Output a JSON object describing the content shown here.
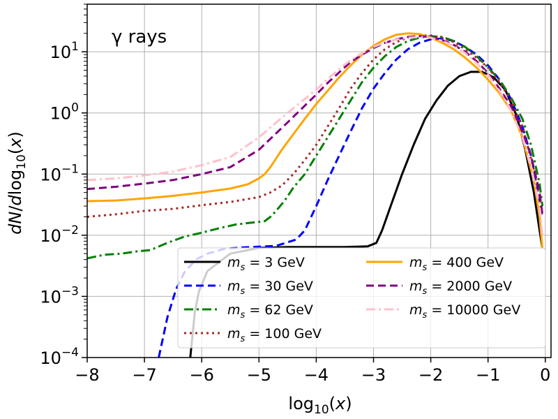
{
  "chart_data": {
    "type": "line",
    "annotation": "γ rays",
    "xlabel": "log10(x)",
    "ylabel": "dN/dlog10(x)",
    "xlim": [
      -8,
      0.1
    ],
    "ylim": [
      0.0001,
      60
    ],
    "yscale": "log",
    "grid": true,
    "legend_position": "lower-right",
    "legend_columns": 2,
    "x_ticks": [
      {
        "value": -8,
        "label": "−8"
      },
      {
        "value": -7,
        "label": "−7"
      },
      {
        "value": -6,
        "label": "−6"
      },
      {
        "value": -5,
        "label": "−5"
      },
      {
        "value": -4,
        "label": "−4"
      },
      {
        "value": -3,
        "label": "−3"
      },
      {
        "value": -2,
        "label": "−2"
      },
      {
        "value": -1,
        "label": "−1"
      },
      {
        "value": 0,
        "label": "0"
      }
    ],
    "y_ticks": [
      {
        "value": 0.0001,
        "base": "10",
        "exp": "−4"
      },
      {
        "value": 0.001,
        "base": "10",
        "exp": "−3"
      },
      {
        "value": 0.01,
        "base": "10",
        "exp": "−2"
      },
      {
        "value": 0.1,
        "base": "10",
        "exp": "−1"
      },
      {
        "value": 1,
        "base": "10",
        "exp": "0"
      },
      {
        "value": 10,
        "base": "10",
        "exp": "1"
      }
    ],
    "series": [
      {
        "name": "m_s = 3 GeV",
        "mass": "3",
        "color": "#000000",
        "style": "solid",
        "x": [
          -6.2,
          -6.12,
          -6.05,
          -5.9,
          -5.5,
          -5.0,
          -4.5,
          -4.0,
          -3.5,
          -3.1,
          -2.95,
          -2.85,
          -2.7,
          -2.5,
          -2.3,
          -2.1,
          -1.9,
          -1.7,
          -1.5,
          -1.3,
          -1.1,
          -0.9,
          -0.7,
          -0.5,
          -0.35,
          -0.2,
          -0.1,
          -0.05
        ],
        "y": [
          0.0001,
          0.00055,
          0.0012,
          0.0026,
          0.005,
          0.0062,
          0.0064,
          0.0064,
          0.0064,
          0.0066,
          0.0075,
          0.012,
          0.03,
          0.1,
          0.3,
          0.8,
          1.6,
          2.8,
          4.0,
          4.7,
          4.7,
          3.8,
          2.4,
          0.9,
          0.25,
          0.05,
          0.012,
          0.006
        ]
      },
      {
        "name": "m_s = 30 GeV",
        "mass": "30",
        "color": "#0000ff",
        "style": "dash",
        "x": [
          -6.75,
          -6.6,
          -6.45,
          -6.3,
          -6.1,
          -5.9,
          -5.6,
          -5.3,
          -5.0,
          -4.7,
          -4.35,
          -4.2,
          -4.0,
          -3.8,
          -3.6,
          -3.4,
          -3.2,
          -3.0,
          -2.8,
          -2.6,
          -2.4,
          -2.2,
          -2.0,
          -1.8,
          -1.6,
          -1.4,
          -1.2,
          -1.0,
          -0.8,
          -0.6,
          -0.4,
          -0.25,
          -0.15,
          -0.05
        ],
        "y": [
          0.0001,
          0.00045,
          0.0013,
          0.0025,
          0.004,
          0.005,
          0.006,
          0.0063,
          0.0065,
          0.0067,
          0.0085,
          0.012,
          0.03,
          0.08,
          0.2,
          0.5,
          1.2,
          2.5,
          4.5,
          7.5,
          11,
          14,
          16,
          16.5,
          15,
          12,
          9,
          6,
          3.5,
          1.7,
          0.6,
          0.2,
          0.07,
          0.02
        ]
      },
      {
        "name": "m_s = 62 GeV",
        "mass": "62",
        "color": "#008000",
        "style": "dashdot",
        "x": [
          -8,
          -7.7,
          -7.4,
          -7.1,
          -6.9,
          -6.6,
          -6.3,
          -6.0,
          -5.7,
          -5.4,
          -5.15,
          -5.0,
          -4.9,
          -4.8,
          -4.7,
          -4.55,
          -4.4,
          -4.2,
          -4.0,
          -3.8,
          -3.6,
          -3.4,
          -3.2,
          -3.0,
          -2.8,
          -2.6,
          -2.4,
          -2.2,
          -2.0,
          -1.8,
          -1.6,
          -1.4,
          -1.2,
          -1.0,
          -0.8,
          -0.6,
          -0.4,
          -0.25,
          -0.1,
          -0.05
        ],
        "y": [
          0.0042,
          0.0048,
          0.005,
          0.0055,
          0.0057,
          0.0075,
          0.0095,
          0.011,
          0.013,
          0.015,
          0.016,
          0.0165,
          0.017,
          0.02,
          0.025,
          0.037,
          0.06,
          0.1,
          0.2,
          0.4,
          0.8,
          1.6,
          3.2,
          5.5,
          8.5,
          12,
          15,
          17,
          18,
          17.5,
          15,
          12,
          8.5,
          5.5,
          3.5,
          1.8,
          0.8,
          0.3,
          0.07,
          0.03
        ]
      },
      {
        "name": "m_s = 100 GeV",
        "mass": "100",
        "color": "#a52a2a",
        "style": "dot",
        "x": [
          -8,
          -7.5,
          -7.0,
          -6.5,
          -6.0,
          -5.5,
          -5.0,
          -4.8,
          -4.6,
          -4.4,
          -4.2,
          -4.0,
          -3.8,
          -3.6,
          -3.4,
          -3.2,
          -3.0,
          -2.8,
          -2.6,
          -2.4,
          -2.2,
          -2.0,
          -1.8,
          -1.6,
          -1.4,
          -1.2,
          -1.0,
          -0.8,
          -0.6,
          -0.4,
          -0.2,
          -0.05
        ],
        "y": [
          0.02,
          0.022,
          0.025,
          0.027,
          0.031,
          0.035,
          0.042,
          0.05,
          0.065,
          0.1,
          0.17,
          0.3,
          0.6,
          1.2,
          2.5,
          4.5,
          7.5,
          11,
          14.5,
          17,
          18.5,
          18.5,
          17,
          14.5,
          11,
          8,
          5.5,
          3.2,
          1.6,
          0.6,
          0.12,
          0.02
        ]
      },
      {
        "name": "m_s = 400 GeV",
        "mass": "400",
        "color": "#ffa500",
        "style": "solid",
        "x": [
          -8,
          -7.5,
          -7.0,
          -6.5,
          -6.0,
          -5.5,
          -5.2,
          -5.0,
          -4.9,
          -4.8,
          -4.6,
          -4.4,
          -4.2,
          -4.0,
          -3.8,
          -3.6,
          -3.4,
          -3.2,
          -3.0,
          -2.8,
          -2.6,
          -2.4,
          -2.2,
          -2.0,
          -1.8,
          -1.6,
          -1.4,
          -1.2,
          -1.0,
          -0.8,
          -0.6,
          -0.4,
          -0.2,
          -0.1,
          -0.05
        ],
        "y": [
          0.036,
          0.037,
          0.04,
          0.044,
          0.05,
          0.058,
          0.068,
          0.085,
          0.1,
          0.13,
          0.25,
          0.45,
          0.8,
          1.4,
          2.3,
          3.8,
          6,
          9,
          12.5,
          16,
          19,
          20,
          19.5,
          17,
          14,
          11,
          8,
          5.5,
          3.5,
          2.1,
          1.1,
          0.4,
          0.08,
          0.02,
          0.006
        ]
      },
      {
        "name": "m_s = 2000 GeV",
        "mass": "2000",
        "color": "#800080",
        "style": "dash",
        "x": [
          -8,
          -7.5,
          -7.0,
          -6.5,
          -6.0,
          -5.5,
          -5.0,
          -4.5,
          -4.0,
          -3.8,
          -3.6,
          -3.4,
          -3.2,
          -3.0,
          -2.8,
          -2.6,
          -2.4,
          -2.2,
          -2.0,
          -1.8,
          -1.6,
          -1.4,
          -1.2,
          -1.0,
          -0.8,
          -0.6,
          -0.4,
          -0.25,
          -0.1,
          -0.05
        ],
        "y": [
          0.057,
          0.062,
          0.07,
          0.08,
          0.1,
          0.13,
          0.25,
          0.7,
          2.0,
          3.1,
          4.6,
          6.8,
          9,
          11.5,
          14,
          16,
          17.5,
          18,
          17.5,
          15.5,
          13,
          10,
          7,
          4.5,
          2.5,
          1.3,
          0.5,
          0.2,
          0.05,
          0.022
        ]
      },
      {
        "name": "m_s = 10000 GeV",
        "mass": "10000",
        "color": "#ffc0cb",
        "style": "dashdot",
        "x": [
          -8,
          -7.5,
          -7.0,
          -6.5,
          -6.0,
          -5.5,
          -5.0,
          -4.5,
          -4.0,
          -3.8,
          -3.6,
          -3.4,
          -3.2,
          -3.0,
          -2.8,
          -2.6,
          -2.4,
          -2.2,
          -2.0,
          -1.8,
          -1.6,
          -1.4,
          -1.2,
          -1.0,
          -0.8,
          -0.6,
          -0.4,
          -0.25,
          -0.1,
          -0.05
        ],
        "y": [
          0.08,
          0.085,
          0.095,
          0.11,
          0.14,
          0.19,
          0.4,
          1.0,
          2.4,
          3.6,
          5.2,
          7.3,
          9.5,
          12,
          14.2,
          15.8,
          17,
          17.5,
          17,
          15,
          12.5,
          9.5,
          6.5,
          4.2,
          2.3,
          1.1,
          0.4,
          0.13,
          0.03,
          0.01
        ]
      }
    ]
  }
}
